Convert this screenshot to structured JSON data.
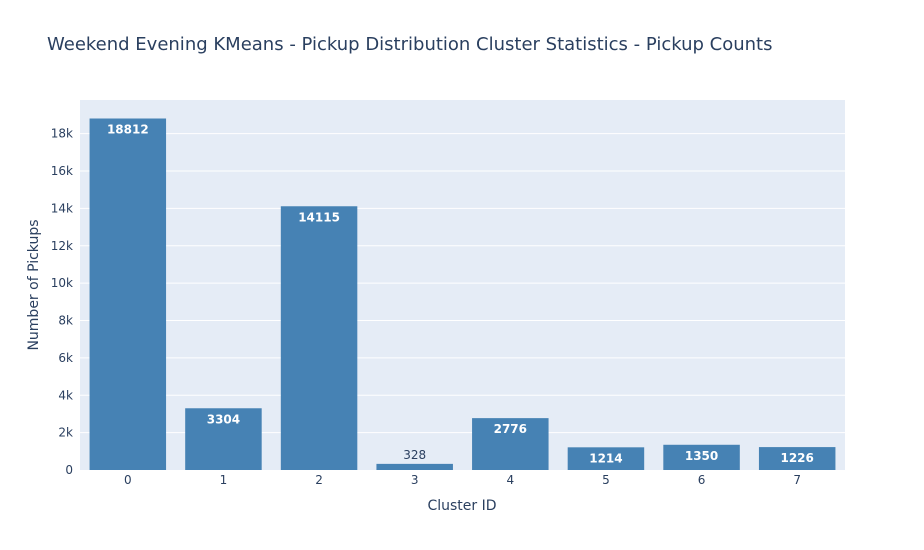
{
  "chart_data": {
    "type": "bar",
    "title": "Weekend Evening KMeans - Pickup Distribution Cluster Statistics - Pickup Counts",
    "xlabel": "Cluster ID",
    "ylabel": "Number of Pickups",
    "categories": [
      "0",
      "1",
      "2",
      "3",
      "4",
      "5",
      "6",
      "7"
    ],
    "values": [
      18812,
      3304,
      14115,
      328,
      2776,
      1214,
      1350,
      1226
    ],
    "data_labels": [
      "18812",
      "3304",
      "14115",
      "328",
      "2776",
      "1214",
      "1350",
      "1226"
    ],
    "ylim": [
      0,
      19802
    ],
    "yticks": [
      0,
      2000,
      4000,
      6000,
      8000,
      10000,
      12000,
      14000,
      16000,
      18000
    ],
    "ytick_labels": [
      "0",
      "2k",
      "4k",
      "6k",
      "8k",
      "10k",
      "12k",
      "14k",
      "16k",
      "18k"
    ],
    "grid": true,
    "colors": {
      "bar": "#4682b4",
      "plot_bg": "#e5ecf6",
      "grid": "#ffffff",
      "text": "#2a3f5f"
    }
  }
}
